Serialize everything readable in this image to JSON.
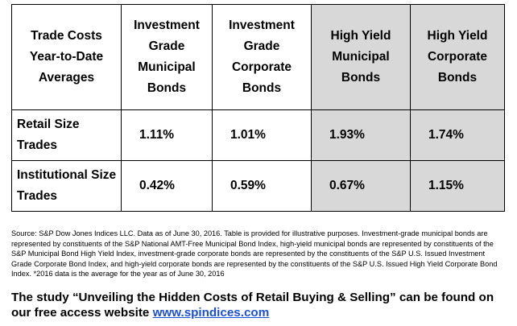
{
  "table": {
    "corner_header": "Trade Costs Year-to-Date Averages",
    "columns": [
      "Investment Grade Municipal Bonds",
      "Investment Grade Corporate Bonds",
      "High Yield Municipal Bonds",
      "High Yield Corporate Bonds"
    ],
    "rows": [
      {
        "label": "Retail Size Trades",
        "values": [
          "1.11%",
          "1.01%",
          "1.93%",
          "1.74%"
        ]
      },
      {
        "label": "Institutional Size Trades",
        "values": [
          "0.42%",
          "0.59%",
          "0.67%",
          "1.15%"
        ]
      }
    ],
    "shade_color": "#d8d8d8"
  },
  "source_note": "Source: S&P Dow Jones Indices LLC.  Data as of June 30, 2016.  Table is provided for illustrative purposes.  Investment-grade municipal bonds are represented by constituents of the S&P National AMT-Free Municipal Bond Index, high-yield municipal bonds are represented by constituents of the S&P Municipal Bond High Yield Index, investment-grade corporate bonds are represented by the constituents of the S&P U.S. Issued Investment Grade Corporate Bond Index, and high-yield corporate bonds are represented by the constituents of the S&P U.S. Issued High Yield Corporate Bond Index.  *2016 data is the average for the year as of June 30, 2016",
  "study": {
    "text": "The study “Unveiling the Hidden Costs of Retail Buying & Selling” can be found on our free access website ",
    "link_text": "www.spindices.com",
    "link_color": "#1a4fd8"
  }
}
